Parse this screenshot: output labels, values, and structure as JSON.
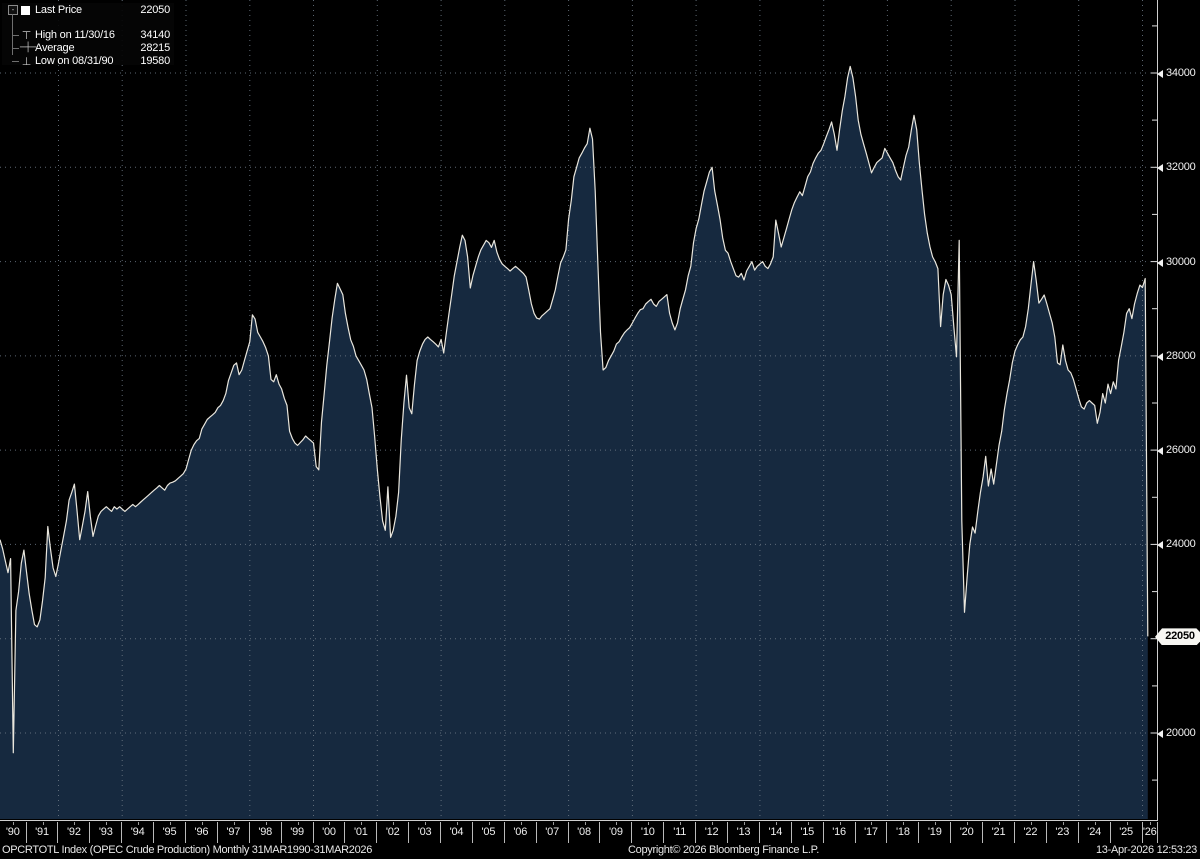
{
  "legend": {
    "collapse_glyph": "-",
    "items": [
      {
        "icon": "last-price-square",
        "label": "Last Price",
        "value": "22050"
      },
      {
        "icon": "high-marker",
        "label": "High on 11/30/16",
        "value": "34140"
      },
      {
        "icon": "average-marker",
        "label": "Average",
        "value": "28215"
      },
      {
        "icon": "low-marker",
        "label": "Low on 08/31/90",
        "value": "19580"
      }
    ]
  },
  "y_axis": {
    "labeled_ticks": [
      {
        "value": 34000,
        "label": "34000"
      },
      {
        "value": 32000,
        "label": "32000"
      },
      {
        "value": 30000,
        "label": "30000"
      },
      {
        "value": 28000,
        "label": "28000"
      },
      {
        "value": 26000,
        "label": "26000"
      },
      {
        "value": 24000,
        "label": "24000"
      },
      {
        "value": 20000,
        "label": "20000"
      }
    ],
    "minor_tick_step": 1000
  },
  "last_price_badge": {
    "text": "22050",
    "value": 22050
  },
  "x_axis": {
    "labels": [
      "'90",
      "'91",
      "'92",
      "'93",
      "'94",
      "'95",
      "'96",
      "'97",
      "'98",
      "'99",
      "'00",
      "'01",
      "'02",
      "'03",
      "'04",
      "'05",
      "'06",
      "'07",
      "'08",
      "'09",
      "'10",
      "'11",
      "'12",
      "'13",
      "'14",
      "'15",
      "'16",
      "'17",
      "'18",
      "'19",
      "'20",
      "'21",
      "'22",
      "'23",
      "'24",
      "'25",
      "'26"
    ]
  },
  "footer": {
    "left": "OPCRTOTL Index (OPEC Crude Production) Monthly 31MAR1990-31MAR2026",
    "center": "Copyright© 2026 Bloomberg Finance L.P.",
    "right": "13-Apr-2026 12:53:23"
  },
  "colors": {
    "background": "#000000",
    "area_fill": "#16293f",
    "line": "#e9e6dd",
    "grid": "#6e7a86",
    "axis": "#cfcfcf",
    "badge_bg": "#f7f6f2",
    "badge_text": "#000000",
    "text": "#ffffff"
  },
  "chart_data": {
    "type": "area",
    "title": "OPCRTOTL Index (OPEC Crude Production) Monthly 31MAR1990-31MAR2026",
    "frequency": "monthly",
    "x_start": "1990-03",
    "x_end": "2026-03",
    "ylim": [
      19000,
      35200
    ],
    "grid": "dotted",
    "legend_position": "top-left",
    "y_ticks_labeled": [
      20000,
      24000,
      26000,
      28000,
      30000,
      32000,
      34000
    ],
    "x_tick_labels": [
      "'90",
      "'91",
      "'92",
      "'93",
      "'94",
      "'95",
      "'96",
      "'97",
      "'98",
      "'99",
      "'00",
      "'01",
      "'02",
      "'03",
      "'04",
      "'05",
      "'06",
      "'07",
      "'08",
      "'09",
      "'10",
      "'11",
      "'12",
      "'13",
      "'14",
      "'15",
      "'16",
      "'17",
      "'18",
      "'19",
      "'20",
      "'21",
      "'22",
      "'23",
      "'24",
      "'25",
      "'26"
    ],
    "stats": {
      "last_price": 22050,
      "high": 34140,
      "high_date": "11/30/16",
      "average": 28215,
      "low": 19580,
      "low_date": "08/31/90"
    },
    "series": [
      {
        "name": "OPCRTOTL Index",
        "start_month": "1990-03",
        "values": [
          24100,
          23900,
          23650,
          23400,
          23700,
          19580,
          22600,
          23000,
          23600,
          23880,
          23400,
          22950,
          22600,
          22300,
          22250,
          22400,
          22800,
          23300,
          24380,
          23900,
          23500,
          23320,
          23600,
          23900,
          24200,
          24500,
          24940,
          25100,
          25280,
          24700,
          24100,
          24400,
          24700,
          25120,
          24600,
          24170,
          24400,
          24600,
          24700,
          24750,
          24800,
          24750,
          24700,
          24800,
          24750,
          24800,
          24750,
          24700,
          24750,
          24800,
          24850,
          24800,
          24850,
          24900,
          24950,
          25000,
          25050,
          25100,
          25150,
          25200,
          25250,
          25200,
          25150,
          25250,
          25300,
          25320,
          25350,
          25400,
          25450,
          25500,
          25600,
          25800,
          26000,
          26120,
          26200,
          26250,
          26450,
          26550,
          26650,
          26700,
          26750,
          26800,
          26900,
          26950,
          27050,
          27200,
          27480,
          27640,
          27800,
          27850,
          27600,
          27700,
          27900,
          28100,
          28300,
          28870,
          28780,
          28500,
          28400,
          28300,
          28170,
          28000,
          27500,
          27450,
          27600,
          27400,
          27300,
          27100,
          26950,
          26400,
          26250,
          26150,
          26100,
          26160,
          26220,
          26300,
          26250,
          26200,
          26150,
          25650,
          25580,
          26600,
          27200,
          27800,
          28300,
          28800,
          29200,
          29540,
          29420,
          29300,
          28900,
          28600,
          28340,
          28200,
          28000,
          27900,
          27800,
          27700,
          27500,
          27200,
          26900,
          26300,
          25600,
          25000,
          24500,
          24300,
          25220,
          24150,
          24300,
          24600,
          25100,
          26200,
          27000,
          27590,
          26900,
          26770,
          27400,
          27900,
          28100,
          28250,
          28350,
          28400,
          28350,
          28300,
          28250,
          28190,
          28350,
          28060,
          28500,
          28900,
          29300,
          29700,
          30000,
          30300,
          30560,
          30450,
          30100,
          29440,
          29700,
          29900,
          30100,
          30250,
          30350,
          30450,
          30400,
          30300,
          30450,
          30200,
          30050,
          29950,
          29900,
          29850,
          29800,
          29850,
          29900,
          29850,
          29800,
          29750,
          29670,
          29400,
          29100,
          28900,
          28800,
          28780,
          28850,
          28900,
          28950,
          29000,
          29200,
          29400,
          29700,
          29970,
          30100,
          30250,
          30900,
          31300,
          31800,
          32000,
          32200,
          32300,
          32410,
          32500,
          32830,
          32600,
          31500,
          30000,
          28500,
          27700,
          27750,
          27900,
          28000,
          28100,
          28250,
          28300,
          28400,
          28490,
          28550,
          28600,
          28700,
          28800,
          28900,
          28980,
          29000,
          29100,
          29150,
          29200,
          29100,
          29050,
          29150,
          29200,
          29250,
          29300,
          28900,
          28700,
          28550,
          28700,
          29000,
          29200,
          29400,
          29700,
          29900,
          30400,
          30700,
          30900,
          31200,
          31500,
          31700,
          31900,
          32000,
          31500,
          31200,
          30900,
          30500,
          30240,
          30180,
          30000,
          29850,
          29700,
          29670,
          29750,
          29610,
          29800,
          29900,
          30000,
          29820,
          29900,
          29950,
          30000,
          29900,
          29850,
          29950,
          30100,
          30880,
          30600,
          30310,
          30500,
          30700,
          30900,
          31100,
          31250,
          31370,
          31480,
          31400,
          31600,
          31800,
          31900,
          32080,
          32200,
          32300,
          32360,
          32500,
          32650,
          32800,
          32960,
          32700,
          32360,
          32800,
          33200,
          33500,
          33900,
          34140,
          33900,
          33500,
          33000,
          32700,
          32500,
          32300,
          32100,
          31880,
          32000,
          32100,
          32150,
          32200,
          32400,
          32300,
          32200,
          32100,
          31940,
          31800,
          31730,
          32000,
          32250,
          32430,
          32800,
          33100,
          32800,
          32100,
          31520,
          31000,
          30600,
          30310,
          30100,
          29990,
          29850,
          28620,
          29300,
          29620,
          29500,
          29300,
          28600,
          27980,
          30450,
          24500,
          22560,
          23300,
          24000,
          24370,
          24240,
          24700,
          25100,
          25430,
          25870,
          25240,
          25600,
          25280,
          25700,
          26100,
          26400,
          26850,
          27200,
          27500,
          27850,
          28100,
          28230,
          28340,
          28400,
          28620,
          29000,
          29500,
          30000,
          29600,
          29120,
          29200,
          29290,
          29100,
          28900,
          28700,
          28400,
          27850,
          27810,
          28230,
          27900,
          27700,
          27640,
          27500,
          27300,
          27100,
          26920,
          26870,
          27000,
          27050,
          27000,
          26950,
          26570,
          26800,
          27200,
          27000,
          27400,
          27200,
          27450,
          27300,
          27910,
          28200,
          28500,
          28900,
          29000,
          28790,
          29100,
          29320,
          29500,
          29450,
          29640,
          22050
        ]
      }
    ]
  }
}
